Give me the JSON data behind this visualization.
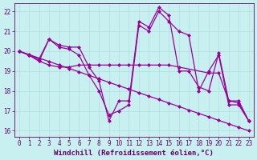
{
  "xlabel": "Windchill (Refroidissement éolien,°C)",
  "background_color": "#c8f0f0",
  "line_color": "#990099",
  "grid_color": "#b0dede",
  "text_color": "#660066",
  "xlim": [
    -0.5,
    23.5
  ],
  "ylim": [
    15.7,
    22.4
  ],
  "xticks": [
    0,
    1,
    2,
    3,
    4,
    5,
    6,
    7,
    8,
    9,
    10,
    11,
    12,
    13,
    14,
    15,
    16,
    17,
    18,
    19,
    20,
    21,
    22,
    23
  ],
  "yticks": [
    16,
    17,
    18,
    19,
    20,
    21,
    22
  ],
  "lines": [
    {
      "x": [
        0,
        1,
        2,
        3,
        4,
        5,
        6,
        7,
        8,
        9,
        10,
        11,
        12,
        13,
        14,
        15,
        16,
        17,
        18,
        19,
        20,
        21,
        22,
        23
      ],
      "y": [
        20.0,
        19.8,
        19.6,
        20.6,
        20.3,
        20.2,
        20.2,
        19.2,
        18.5,
        16.5,
        17.5,
        17.5,
        21.5,
        21.2,
        22.2,
        21.8,
        19.0,
        19.0,
        18.2,
        18.0,
        19.9,
        17.5,
        17.5,
        16.5
      ]
    },
    {
      "x": [
        0,
        1,
        2,
        3,
        4,
        5,
        6,
        7,
        8,
        9,
        10,
        11,
        12,
        13,
        14,
        15,
        16,
        17,
        18,
        19,
        20,
        21,
        22,
        23
      ],
      "y": [
        20.0,
        19.83,
        19.65,
        19.48,
        19.3,
        19.13,
        18.96,
        18.78,
        18.61,
        18.43,
        18.26,
        18.09,
        17.91,
        17.74,
        17.57,
        17.39,
        17.22,
        17.04,
        16.87,
        16.7,
        16.52,
        16.35,
        16.17,
        16.0
      ]
    },
    {
      "x": [
        0,
        1,
        2,
        3,
        4,
        5,
        6,
        7,
        8,
        9,
        10,
        11,
        12,
        13,
        14,
        15,
        16,
        19,
        20,
        21,
        22,
        23
      ],
      "y": [
        20.0,
        19.8,
        19.5,
        19.3,
        19.2,
        19.2,
        19.3,
        19.3,
        19.3,
        19.3,
        19.3,
        19.3,
        19.3,
        19.3,
        19.3,
        19.3,
        19.2,
        18.9,
        18.9,
        17.5,
        17.4,
        16.5
      ]
    },
    {
      "x": [
        0,
        1,
        2,
        3,
        4,
        5,
        6,
        7,
        8,
        9,
        10,
        11,
        12,
        13,
        14,
        15,
        16,
        17,
        18,
        19,
        20,
        21,
        22,
        23
      ],
      "y": [
        20.0,
        19.8,
        19.5,
        20.6,
        20.2,
        20.1,
        19.8,
        18.8,
        18.0,
        16.8,
        17.0,
        17.3,
        21.3,
        21.0,
        22.0,
        21.5,
        21.0,
        20.8,
        18.0,
        19.0,
        19.8,
        17.3,
        17.3,
        16.5
      ]
    }
  ],
  "marker": "D",
  "markersize": 2.0,
  "linewidth": 0.9,
  "axis_fontsize": 6.5,
  "tick_fontsize": 5.5
}
